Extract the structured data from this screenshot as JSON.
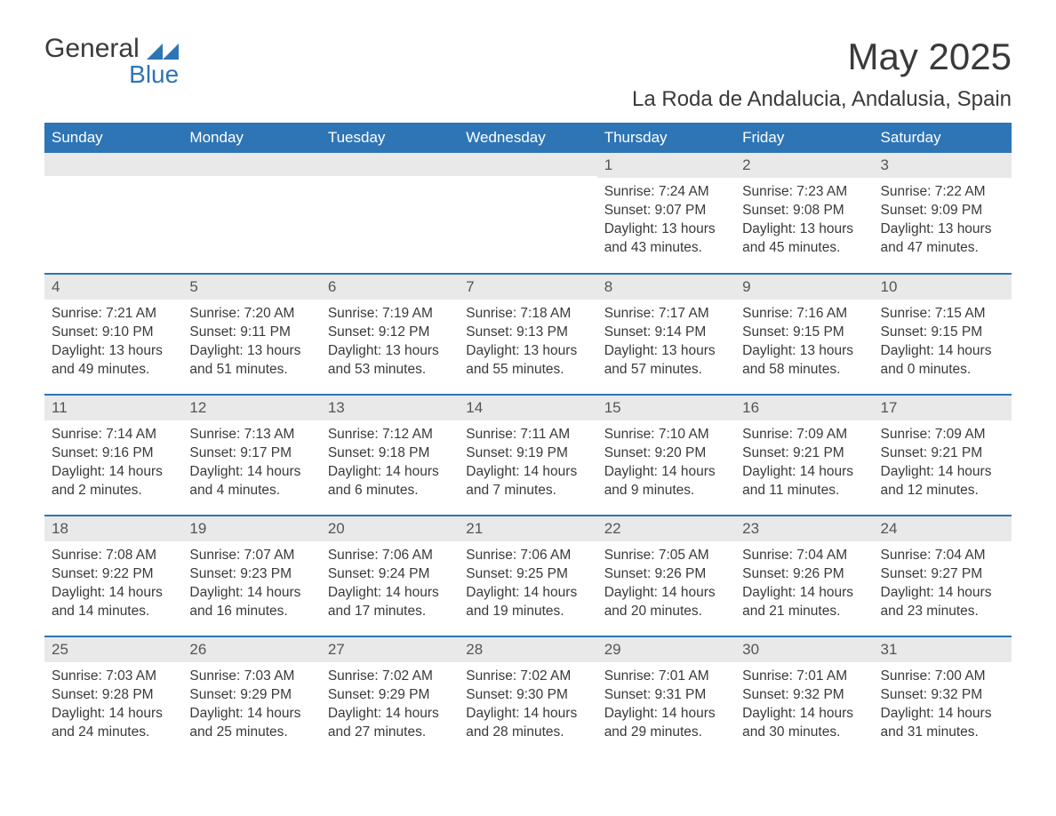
{
  "logo": {
    "word1": "General",
    "word2": "Blue"
  },
  "title": "May 2025",
  "location": "La Roda de Andalucia, Andalusia, Spain",
  "colors": {
    "accent": "#2e75b6",
    "header_text": "#ffffff",
    "body_text": "#3a3a3a",
    "daynum_bg": "#e9e9e9",
    "background": "#ffffff"
  },
  "table": {
    "columns": [
      "Sunday",
      "Monday",
      "Tuesday",
      "Wednesday",
      "Thursday",
      "Friday",
      "Saturday"
    ],
    "column_width_pct": 14.28,
    "header_fontsize": 17,
    "cell_fontsize": 15.5
  },
  "weeks": [
    [
      {
        "day": "",
        "sunrise": "",
        "sunset": "",
        "daylight1": "",
        "daylight2": ""
      },
      {
        "day": "",
        "sunrise": "",
        "sunset": "",
        "daylight1": "",
        "daylight2": ""
      },
      {
        "day": "",
        "sunrise": "",
        "sunset": "",
        "daylight1": "",
        "daylight2": ""
      },
      {
        "day": "",
        "sunrise": "",
        "sunset": "",
        "daylight1": "",
        "daylight2": ""
      },
      {
        "day": "1",
        "sunrise": "Sunrise: 7:24 AM",
        "sunset": "Sunset: 9:07 PM",
        "daylight1": "Daylight: 13 hours",
        "daylight2": "and 43 minutes."
      },
      {
        "day": "2",
        "sunrise": "Sunrise: 7:23 AM",
        "sunset": "Sunset: 9:08 PM",
        "daylight1": "Daylight: 13 hours",
        "daylight2": "and 45 minutes."
      },
      {
        "day": "3",
        "sunrise": "Sunrise: 7:22 AM",
        "sunset": "Sunset: 9:09 PM",
        "daylight1": "Daylight: 13 hours",
        "daylight2": "and 47 minutes."
      }
    ],
    [
      {
        "day": "4",
        "sunrise": "Sunrise: 7:21 AM",
        "sunset": "Sunset: 9:10 PM",
        "daylight1": "Daylight: 13 hours",
        "daylight2": "and 49 minutes."
      },
      {
        "day": "5",
        "sunrise": "Sunrise: 7:20 AM",
        "sunset": "Sunset: 9:11 PM",
        "daylight1": "Daylight: 13 hours",
        "daylight2": "and 51 minutes."
      },
      {
        "day": "6",
        "sunrise": "Sunrise: 7:19 AM",
        "sunset": "Sunset: 9:12 PM",
        "daylight1": "Daylight: 13 hours",
        "daylight2": "and 53 minutes."
      },
      {
        "day": "7",
        "sunrise": "Sunrise: 7:18 AM",
        "sunset": "Sunset: 9:13 PM",
        "daylight1": "Daylight: 13 hours",
        "daylight2": "and 55 minutes."
      },
      {
        "day": "8",
        "sunrise": "Sunrise: 7:17 AM",
        "sunset": "Sunset: 9:14 PM",
        "daylight1": "Daylight: 13 hours",
        "daylight2": "and 57 minutes."
      },
      {
        "day": "9",
        "sunrise": "Sunrise: 7:16 AM",
        "sunset": "Sunset: 9:15 PM",
        "daylight1": "Daylight: 13 hours",
        "daylight2": "and 58 minutes."
      },
      {
        "day": "10",
        "sunrise": "Sunrise: 7:15 AM",
        "sunset": "Sunset: 9:15 PM",
        "daylight1": "Daylight: 14 hours",
        "daylight2": "and 0 minutes."
      }
    ],
    [
      {
        "day": "11",
        "sunrise": "Sunrise: 7:14 AM",
        "sunset": "Sunset: 9:16 PM",
        "daylight1": "Daylight: 14 hours",
        "daylight2": "and 2 minutes."
      },
      {
        "day": "12",
        "sunrise": "Sunrise: 7:13 AM",
        "sunset": "Sunset: 9:17 PM",
        "daylight1": "Daylight: 14 hours",
        "daylight2": "and 4 minutes."
      },
      {
        "day": "13",
        "sunrise": "Sunrise: 7:12 AM",
        "sunset": "Sunset: 9:18 PM",
        "daylight1": "Daylight: 14 hours",
        "daylight2": "and 6 minutes."
      },
      {
        "day": "14",
        "sunrise": "Sunrise: 7:11 AM",
        "sunset": "Sunset: 9:19 PM",
        "daylight1": "Daylight: 14 hours",
        "daylight2": "and 7 minutes."
      },
      {
        "day": "15",
        "sunrise": "Sunrise: 7:10 AM",
        "sunset": "Sunset: 9:20 PM",
        "daylight1": "Daylight: 14 hours",
        "daylight2": "and 9 minutes."
      },
      {
        "day": "16",
        "sunrise": "Sunrise: 7:09 AM",
        "sunset": "Sunset: 9:21 PM",
        "daylight1": "Daylight: 14 hours",
        "daylight2": "and 11 minutes."
      },
      {
        "day": "17",
        "sunrise": "Sunrise: 7:09 AM",
        "sunset": "Sunset: 9:21 PM",
        "daylight1": "Daylight: 14 hours",
        "daylight2": "and 12 minutes."
      }
    ],
    [
      {
        "day": "18",
        "sunrise": "Sunrise: 7:08 AM",
        "sunset": "Sunset: 9:22 PM",
        "daylight1": "Daylight: 14 hours",
        "daylight2": "and 14 minutes."
      },
      {
        "day": "19",
        "sunrise": "Sunrise: 7:07 AM",
        "sunset": "Sunset: 9:23 PM",
        "daylight1": "Daylight: 14 hours",
        "daylight2": "and 16 minutes."
      },
      {
        "day": "20",
        "sunrise": "Sunrise: 7:06 AM",
        "sunset": "Sunset: 9:24 PM",
        "daylight1": "Daylight: 14 hours",
        "daylight2": "and 17 minutes."
      },
      {
        "day": "21",
        "sunrise": "Sunrise: 7:06 AM",
        "sunset": "Sunset: 9:25 PM",
        "daylight1": "Daylight: 14 hours",
        "daylight2": "and 19 minutes."
      },
      {
        "day": "22",
        "sunrise": "Sunrise: 7:05 AM",
        "sunset": "Sunset: 9:26 PM",
        "daylight1": "Daylight: 14 hours",
        "daylight2": "and 20 minutes."
      },
      {
        "day": "23",
        "sunrise": "Sunrise: 7:04 AM",
        "sunset": "Sunset: 9:26 PM",
        "daylight1": "Daylight: 14 hours",
        "daylight2": "and 21 minutes."
      },
      {
        "day": "24",
        "sunrise": "Sunrise: 7:04 AM",
        "sunset": "Sunset: 9:27 PM",
        "daylight1": "Daylight: 14 hours",
        "daylight2": "and 23 minutes."
      }
    ],
    [
      {
        "day": "25",
        "sunrise": "Sunrise: 7:03 AM",
        "sunset": "Sunset: 9:28 PM",
        "daylight1": "Daylight: 14 hours",
        "daylight2": "and 24 minutes."
      },
      {
        "day": "26",
        "sunrise": "Sunrise: 7:03 AM",
        "sunset": "Sunset: 9:29 PM",
        "daylight1": "Daylight: 14 hours",
        "daylight2": "and 25 minutes."
      },
      {
        "day": "27",
        "sunrise": "Sunrise: 7:02 AM",
        "sunset": "Sunset: 9:29 PM",
        "daylight1": "Daylight: 14 hours",
        "daylight2": "and 27 minutes."
      },
      {
        "day": "28",
        "sunrise": "Sunrise: 7:02 AM",
        "sunset": "Sunset: 9:30 PM",
        "daylight1": "Daylight: 14 hours",
        "daylight2": "and 28 minutes."
      },
      {
        "day": "29",
        "sunrise": "Sunrise: 7:01 AM",
        "sunset": "Sunset: 9:31 PM",
        "daylight1": "Daylight: 14 hours",
        "daylight2": "and 29 minutes."
      },
      {
        "day": "30",
        "sunrise": "Sunrise: 7:01 AM",
        "sunset": "Sunset: 9:32 PM",
        "daylight1": "Daylight: 14 hours",
        "daylight2": "and 30 minutes."
      },
      {
        "day": "31",
        "sunrise": "Sunrise: 7:00 AM",
        "sunset": "Sunset: 9:32 PM",
        "daylight1": "Daylight: 14 hours",
        "daylight2": "and 31 minutes."
      }
    ]
  ]
}
